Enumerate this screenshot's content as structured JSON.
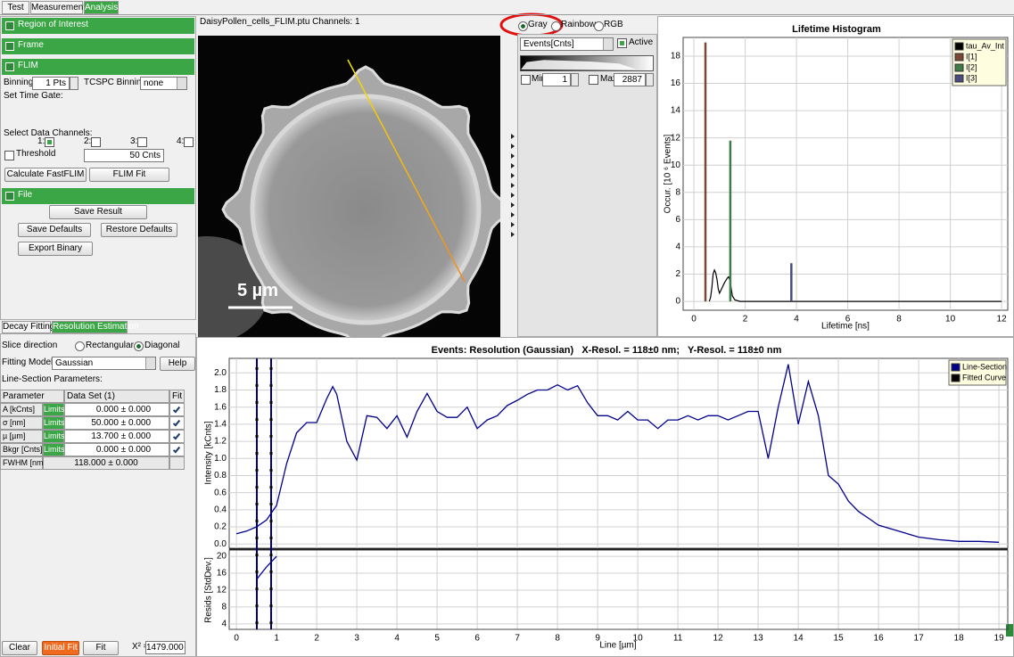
{
  "tabs": [
    "Test",
    "Measurement",
    "Analysis"
  ],
  "active_tab": 2,
  "left_panel": {
    "sections": [
      "Region of Interest",
      "Frame",
      "FLIM",
      "File"
    ],
    "binning_label": "Binning:",
    "binning_value": "1 Pts",
    "tcspc_label": "TCSPC Binning:",
    "tcspc_value": "none",
    "time_gate_label": "Set Time Gate:",
    "channels_label": "Select Data Channels:",
    "channels": [
      "1:",
      "2:",
      "3:",
      "4:"
    ],
    "channels_checked": [
      true,
      false,
      false,
      false
    ],
    "threshold_label": "Threshold",
    "threshold_value": "50 Cnts",
    "buttons": [
      "Calculate FastFLIM",
      "FLIM Fit",
      "Save Result",
      "Save Defaults",
      "Restore Defaults",
      "Export Binary"
    ]
  },
  "image_panel": {
    "title": "DaisyPollen_cells_FLIM.ptu Channels: 1",
    "scale_bar": "5 µm"
  },
  "display_controls": {
    "color_modes": [
      "Gray",
      "Rainbow",
      "RGB"
    ],
    "selected_mode": 0,
    "channel_select": "Events[Cnts]",
    "active_label": "Active",
    "min_label": "Min",
    "min_value": 1,
    "max_label": "Max",
    "max_value": 2887
  },
  "resolution_panel": {
    "tabs": [
      "Decay Fitting",
      "Resolution Estimation"
    ],
    "active_tab": 1,
    "slice_label": "Slice direction",
    "slice_options": [
      "Rectangular",
      "Diagonal"
    ],
    "slice_selected": 1,
    "fitting_label": "Fitting Model:",
    "fitting_value": "Gaussian",
    "help": "Help",
    "params_label": "Line-Section Parameters:",
    "table": {
      "headers": [
        "Parameter",
        "Data Set (1)",
        "Fit"
      ],
      "rows": [
        [
          "A [kCnts]",
          "Limits",
          "0.000 ± 0.000"
        ],
        [
          "σ [nm]",
          "Limits",
          "50.000 ± 0.000"
        ],
        [
          "µ [µm]",
          "Limits",
          "13.700 ± 0.000"
        ],
        [
          "Bkgr [Cnts]",
          "Limits",
          "0.000 ± 0.000"
        ],
        [
          "FWHM [nm]",
          "118.000 ± 0.000"
        ]
      ],
      "fit": [
        true,
        true,
        true,
        true,
        false
      ]
    },
    "buttons": [
      "Clear",
      "Initial Fit",
      "Fit"
    ],
    "chi_label": "X² =",
    "chi_value": "1479.000"
  },
  "histogram": {
    "type": "line",
    "title": "Lifetime Histogram",
    "xlabel": "Lifetime [ns]",
    "ylabel": "Occur. [10 ⁶ Events]",
    "xlim": [
      -0.42,
      12.24
    ],
    "ylim": [
      -0.65,
      19.37
    ],
    "xticks": [
      0,
      2,
      4,
      6,
      8,
      10,
      12
    ],
    "yticks": [
      0,
      2,
      4,
      6,
      8,
      10,
      12,
      14,
      16,
      18
    ],
    "grid": true,
    "legend": "upper right",
    "series": [
      {
        "name": "tau_Av_Int",
        "color": "#000000",
        "mode": "line",
        "x": [
          0.6,
          0.65,
          0.7,
          0.75,
          0.8,
          0.85,
          0.9,
          0.95,
          1.0,
          1.05,
          1.1,
          1.2,
          1.3,
          1.35,
          1.4,
          1.45,
          1.5,
          1.6,
          1.8,
          2.5,
          12
        ],
        "values": [
          0,
          0.3,
          1.0,
          2.0,
          2.3,
          2.1,
          1.6,
          0.9,
          0.6,
          0.8,
          1.0,
          1.4,
          1.7,
          1.8,
          1.6,
          1.0,
          0.4,
          0.1,
          0,
          0,
          0
        ]
      },
      {
        "name": "I[1]",
        "color": "#7a4636",
        "mode": "impulse",
        "x": [
          0.45
        ],
        "values": [
          19
        ]
      },
      {
        "name": "I[2]",
        "color": "#3f7a4a",
        "mode": "impulse",
        "x": [
          1.42
        ],
        "values": [
          11.8
        ]
      },
      {
        "name": "I[3]",
        "color": "#4b4a7c",
        "mode": "impulse",
        "x": [
          3.8
        ],
        "values": [
          2.8
        ]
      }
    ]
  },
  "line_section": {
    "type": "line",
    "title": "Events: Resolution (Gaussian)   X-Resol. = 118±0 nm;   Y-Resol. = 118±0 nm",
    "xlabel": "Line [µm]",
    "ylabel": "Intensity [kCnts]",
    "xlim": [
      -0.18,
      19.22
    ],
    "ylim": [
      -0.05,
      2.17
    ],
    "xticks": [
      0,
      1,
      2,
      3,
      4,
      5,
      6,
      7,
      8,
      9,
      10,
      11,
      12,
      13,
      14,
      15,
      16,
      17,
      18,
      19
    ],
    "yticks": [
      {
        "value": 0,
        "label": "0.0"
      },
      {
        "value": 0.2,
        "label": "0.2"
      },
      {
        "value": 0.4,
        "label": "0.4"
      },
      {
        "value": 0.6,
        "label": "0.6"
      },
      {
        "value": 0.8,
        "label": "0.8"
      },
      {
        "value": 1,
        "label": "1.0"
      },
      {
        "value": 1.2,
        "label": "1.2"
      },
      {
        "value": 1.4,
        "label": "1.4"
      },
      {
        "value": 1.6,
        "label": "1.6"
      },
      {
        "value": 1.8,
        "label": "1.8"
      },
      {
        "value": 2,
        "label": "2.0"
      }
    ],
    "grid": true,
    "legend": "upper right",
    "x": [
      0,
      0.25,
      0.5,
      0.75,
      1,
      1.25,
      1.5,
      1.75,
      2,
      2.25,
      2.4,
      2.5,
      2.75,
      3,
      3.25,
      3.5,
      3.75,
      4,
      4.25,
      4.5,
      4.75,
      5,
      5.25,
      5.5,
      5.75,
      6,
      6.25,
      6.5,
      6.75,
      7,
      7.25,
      7.5,
      7.75,
      8,
      8.25,
      8.5,
      8.75,
      9,
      9.25,
      9.5,
      9.75,
      10,
      10.25,
      10.5,
      10.75,
      11,
      11.25,
      11.5,
      11.75,
      12,
      12.25,
      12.5,
      12.75,
      13,
      13.25,
      13.5,
      13.75,
      14,
      14.25,
      14.5,
      14.75,
      15,
      15.25,
      15.5,
      15.75,
      16,
      16.5,
      17,
      17.5,
      18,
      18.5,
      19
    ],
    "series": [
      {
        "name": "Line-Section",
        "color": "#00008b",
        "values": [
          0.12,
          0.15,
          0.2,
          0.28,
          0.45,
          0.94,
          1.3,
          1.42,
          1.42,
          1.7,
          1.84,
          1.75,
          1.2,
          0.98,
          1.5,
          1.48,
          1.35,
          1.5,
          1.25,
          1.55,
          1.76,
          1.55,
          1.48,
          1.48,
          1.6,
          1.35,
          1.45,
          1.5,
          1.62,
          1.68,
          1.75,
          1.8,
          1.8,
          1.86,
          1.8,
          1.85,
          1.65,
          1.5,
          1.5,
          1.45,
          1.55,
          1.45,
          1.45,
          1.35,
          1.45,
          1.45,
          1.5,
          1.45,
          1.5,
          1.5,
          1.45,
          1.5,
          1.55,
          1.55,
          1.0,
          1.6,
          2.1,
          1.4,
          1.9,
          1.5,
          0.8,
          0.7,
          0.5,
          0.38,
          0.3,
          0.22,
          0.15,
          0.08,
          0.05,
          0.03,
          0.03,
          0.02
        ]
      },
      {
        "name": "Fitted Curve",
        "color": "#000000"
      }
    ],
    "residuals": {
      "ylabel": "Resids [StdDev.]",
      "ylim": [
        2.7,
        21.5
      ],
      "yticks": [
        4,
        8,
        12,
        16,
        20
      ],
      "color": "#00008b",
      "x": [
        0.5,
        0.75,
        1.0
      ],
      "values": [
        14.5,
        17.5,
        20
      ]
    }
  }
}
